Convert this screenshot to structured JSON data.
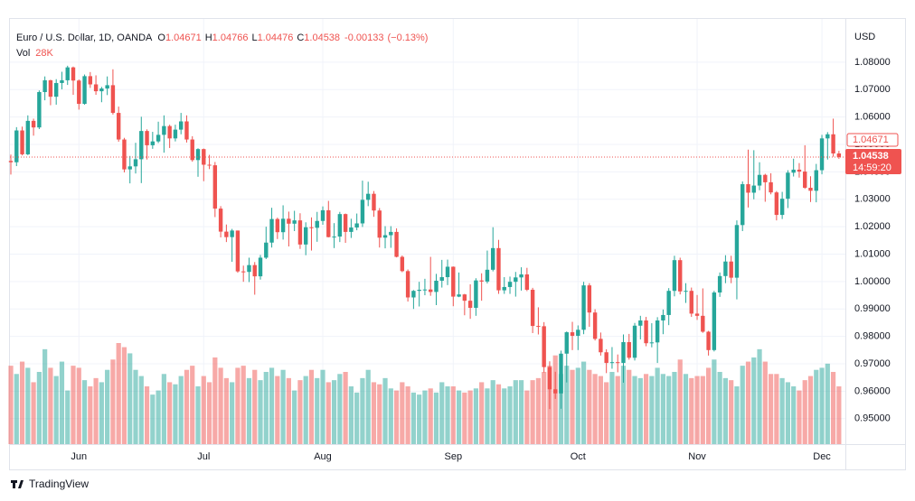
{
  "chart_data": {
    "type": "candlestick",
    "title": "Euro / U.S. Dollar, 1D, OANDA",
    "ohlc_labels": [
      "O",
      "H",
      "L",
      "C"
    ],
    "change": -0.00133,
    "change_label": "(−0.13%)",
    "y_axis_label": "USD",
    "up_color": "#26a69a",
    "down_color": "#ef5350",
    "grid": true,
    "ylim": [
      0.9407,
      1.0928
    ],
    "yticks": [
      {
        "value": 0.95,
        "label": "0.95000"
      },
      {
        "value": 0.96,
        "label": "0.96000"
      },
      {
        "value": 0.97,
        "label": "0.97000"
      },
      {
        "value": 0.98,
        "label": "0.98000"
      },
      {
        "value": 0.99,
        "label": "0.99000"
      },
      {
        "value": 1.0,
        "label": "1.00000"
      },
      {
        "value": 1.01,
        "label": "1.01000"
      },
      {
        "value": 1.02,
        "label": "1.02000"
      },
      {
        "value": 1.03,
        "label": "1.03000"
      },
      {
        "value": 1.04,
        "label": "1.04000"
      },
      {
        "value": 1.05,
        "label": "1.05000"
      },
      {
        "value": 1.06,
        "label": "1.06000"
      },
      {
        "value": 1.07,
        "label": "1.07000"
      },
      {
        "value": 1.08,
        "label": "1.08000"
      }
    ],
    "prev_close_label": "1.04671",
    "close_label": "1.04538",
    "countdown": "14:59:20",
    "footer": "TradingView",
    "categories": [
      null,
      null,
      null,
      null,
      null,
      null,
      null,
      null,
      null,
      null,
      null,
      null,
      "Jun",
      null,
      null,
      null,
      null,
      null,
      null,
      null,
      null,
      null,
      null,
      null,
      null,
      null,
      null,
      null,
      null,
      null,
      null,
      null,
      null,
      null,
      "Jul",
      null,
      null,
      null,
      null,
      null,
      null,
      null,
      null,
      null,
      null,
      null,
      null,
      null,
      null,
      null,
      null,
      null,
      null,
      null,
      null,
      "Aug",
      null,
      null,
      null,
      null,
      null,
      null,
      null,
      null,
      null,
      null,
      null,
      null,
      null,
      null,
      null,
      null,
      null,
      null,
      null,
      null,
      null,
      null,
      "Sep",
      null,
      null,
      null,
      null,
      null,
      null,
      null,
      null,
      null,
      null,
      null,
      null,
      null,
      null,
      null,
      null,
      null,
      null,
      null,
      null,
      null,
      "Oct",
      null,
      null,
      null,
      null,
      null,
      null,
      null,
      null,
      null,
      null,
      null,
      null,
      null,
      null,
      null,
      null,
      null,
      null,
      null,
      null,
      "Nov",
      null,
      null,
      null,
      null,
      null,
      null,
      null,
      null,
      null,
      null,
      null,
      null,
      null,
      null,
      null,
      null,
      null,
      null,
      null,
      null,
      null,
      "Dec",
      null,
      null,
      null
    ],
    "open": [
      1.044,
      1.0435,
      1.0551,
      1.0464,
      1.0586,
      1.0562,
      1.0691,
      1.0734,
      1.0674,
      1.0724,
      1.0734,
      1.0781,
      1.0733,
      1.0648,
      1.0749,
      1.0719,
      1.0694,
      1.0704,
      1.0716,
      1.0615,
      1.0518,
      1.0409,
      1.042,
      1.0446,
      1.0549,
      1.0497,
      1.0511,
      1.0535,
      1.0567,
      1.0522,
      1.0554,
      1.0584,
      1.0518,
      1.0443,
      1.0483,
      1.0426,
      1.0424,
      1.0266,
      1.0182,
      1.0162,
      1.0186,
      1.0037,
      1.0035,
      1.006,
      1.0019,
      1.0087,
      1.0142,
      1.0228,
      1.018,
      1.0229,
      1.0211,
      1.0223,
      1.0135,
      1.0198,
      1.0196,
      1.0221,
      1.026,
      1.0162,
      1.0164,
      1.0246,
      1.0181,
      1.0197,
      1.0212,
      1.0298,
      1.032,
      1.0259,
      1.016,
      1.0169,
      1.0181,
      1.009,
      1.0038,
      0.9942,
      0.9966,
      0.997,
      0.9971,
      0.9962,
      1.0003,
      1.0016,
      1.0054,
      0.9945,
      0.9953,
      0.993,
      0.9904,
      1.0004,
      1.0,
      1.0043,
      1.0122,
      0.9968,
      0.998,
      0.9999,
      1.0015,
      1.0026,
      0.997,
      0.9838,
      0.9837,
      0.9688,
      0.9607,
      0.9592,
      0.9737,
      0.9815,
      0.9802,
      0.9824,
      0.9986,
      0.9887,
      0.9791,
      0.9742,
      0.9703,
      0.9706,
      0.9703,
      0.9779,
      0.9722,
      0.9839,
      0.9858,
      0.9775,
      0.9778,
      0.9858,
      0.9878,
      0.9966,
      1.0078,
      0.9964,
      0.9966,
      0.9883,
      0.9875,
      0.9817,
      0.975,
      0.996,
      1.002,
      1.0073,
      1.0014,
      1.0206,
      1.0355,
      1.0324,
      1.035,
      1.0389,
      1.0362,
      1.0325,
      1.0243,
      1.0302,
      1.0397,
      1.0408,
      1.0401,
      1.0342,
      1.0331,
      1.0406,
      1.0522,
      1.0537,
      1.04671
    ],
    "high": [
      1.0463,
      1.0563,
      1.0565,
      1.0606,
      1.0594,
      1.0697,
      1.0748,
      1.0736,
      1.0738,
      1.0765,
      1.0787,
      1.0784,
      1.0737,
      1.0755,
      1.0764,
      1.0752,
      1.071,
      1.0748,
      1.0774,
      1.0638,
      1.0524,
      1.0458,
      1.0506,
      1.0601,
      1.0555,
      1.0546,
      1.0583,
      1.0606,
      1.0572,
      1.0572,
      1.0615,
      1.0606,
      1.053,
      1.0486,
      1.0485,
      1.0462,
      1.0436,
      1.0275,
      1.0208,
      1.0192,
      1.0186,
      1.0058,
      1.0087,
      1.0071,
      1.0097,
      1.02,
      1.0269,
      1.0233,
      1.0278,
      1.0255,
      1.0258,
      1.0249,
      1.0216,
      1.0234,
      1.0254,
      1.0274,
      1.0294,
      1.0213,
      1.0254,
      1.0248,
      1.0229,
      1.0248,
      1.0368,
      1.0364,
      1.033,
      1.0268,
      1.0202,
      1.0202,
      1.0194,
      1.0095,
      1.0044,
      0.9969,
      0.9999,
      1.001,
      1.009,
      1.0028,
      1.0079,
      1.008,
      1.0055,
      1.0033,
      0.9955,
      0.999,
      1.0012,
      1.003,
      1.0113,
      1.0198,
      1.0152,
      1.0016,
      1.0018,
      1.0035,
      1.0052,
      1.005,
      0.9977,
      0.9906,
      0.9852,
      0.9709,
      0.9671,
      0.9748,
      0.9818,
      0.9853,
      0.984,
      0.9999,
      0.9994,
      0.9899,
      0.9814,
      0.9753,
      0.9761,
      0.9734,
      0.9807,
      0.9809,
      0.9849,
      0.9875,
      0.9871,
      0.9848,
      0.987,
      0.9898,
      0.9976,
      1.0094,
      1.0087,
      0.9994,
      0.9978,
      0.9951,
      0.9975,
      0.982,
      0.9966,
      1.0033,
      1.0096,
      1.0094,
      1.0223,
      1.0365,
      1.0481,
      1.0479,
      1.0435,
      1.0393,
      1.0395,
      1.033,
      1.0327,
      1.0406,
      1.0448,
      1.0432,
      1.0497,
      1.0384,
      1.0429,
      1.0535,
      1.0545,
      1.0594,
      1.04766
    ],
    "low": [
      1.039,
      1.0421,
      1.046,
      1.0461,
      1.0532,
      1.0556,
      1.0661,
      1.0643,
      1.0645,
      1.0701,
      1.0717,
      1.0681,
      1.0627,
      1.0645,
      1.0706,
      1.0681,
      1.0654,
      1.068,
      1.0609,
      1.051,
      1.0398,
      1.0358,
      1.0394,
      1.0359,
      1.0445,
      1.0484,
      1.0505,
      1.047,
      1.0487,
      1.0511,
      1.0537,
      1.0507,
      1.0437,
      1.0382,
      1.0366,
      1.041,
      1.0235,
      1.0161,
      1.0144,
      1.0072,
      1.0032,
      0.9999,
      0.9998,
      0.9952,
      1.0007,
      1.0082,
      1.0124,
      1.0155,
      1.0153,
      1.0128,
      1.0184,
      1.0119,
      1.0096,
      1.0113,
      1.0145,
      1.0207,
      1.0161,
      1.0122,
      1.0144,
      1.0141,
      1.0159,
      1.0187,
      1.0199,
      1.0275,
      1.0236,
      1.0124,
      1.0121,
      1.0123,
      1.0088,
      1.0034,
      0.9927,
      0.99,
      0.9909,
      0.995,
      0.9948,
      0.9914,
      0.9978,
      0.9987,
      0.991,
      0.9943,
      0.9877,
      0.9864,
      0.9875,
      0.993,
      0.9993,
      1.0037,
      0.9955,
      0.9955,
      0.9955,
      0.9945,
      0.9967,
      0.9965,
      0.9812,
      0.9807,
      0.9668,
      0.9535,
      0.9572,
      0.9536,
      0.9632,
      0.975,
      0.975,
      0.9808,
      0.9835,
      0.9785,
      0.973,
      0.9666,
      0.9682,
      0.9669,
      0.9631,
      0.9715,
      0.9712,
      0.9789,
      0.9764,
      0.976,
      0.9703,
      0.9808,
      0.9841,
      0.9946,
      0.9953,
      0.9922,
      0.9871,
      0.986,
      0.9813,
      0.973,
      0.9745,
      0.9944,
      0.9994,
      0.9994,
      0.9935,
      1.0184,
      1.027,
      1.03,
      1.0333,
      1.0291,
      1.0318,
      1.0223,
      1.0228,
      1.0268,
      1.0383,
      1.0379,
      1.0338,
      1.029,
      1.0289,
      1.0391,
      1.0445,
      1.0455,
      1.04476
    ],
    "close": [
      1.0435,
      1.0551,
      1.0464,
      1.0586,
      1.0562,
      1.0691,
      1.0734,
      1.0674,
      1.0724,
      1.0734,
      1.0781,
      1.0733,
      1.0648,
      1.0749,
      1.0719,
      1.0694,
      1.0704,
      1.0716,
      1.0615,
      1.0518,
      1.0409,
      1.042,
      1.0446,
      1.0549,
      1.0497,
      1.0511,
      1.0535,
      1.0567,
      1.0522,
      1.0554,
      1.0584,
      1.0518,
      1.0443,
      1.0483,
      1.0426,
      1.0424,
      1.0266,
      1.0182,
      1.0162,
      1.0186,
      1.0037,
      1.0035,
      1.006,
      1.0019,
      1.0087,
      1.0142,
      1.0228,
      1.018,
      1.0229,
      1.0211,
      1.0223,
      1.0135,
      1.0198,
      1.0196,
      1.0221,
      1.026,
      1.0162,
      1.0164,
      1.0246,
      1.0181,
      1.0197,
      1.0212,
      1.0298,
      1.032,
      1.0259,
      1.016,
      1.0169,
      1.0181,
      1.009,
      1.0038,
      0.9942,
      0.9966,
      0.997,
      0.9971,
      0.9962,
      1.0003,
      1.0016,
      1.0054,
      0.9945,
      0.9953,
      0.993,
      0.9904,
      1.0004,
      1.0,
      1.0043,
      1.0122,
      0.9968,
      0.998,
      0.9999,
      1.0015,
      1.0026,
      0.997,
      0.9838,
      0.9837,
      0.9688,
      0.9607,
      0.9592,
      0.9737,
      0.9815,
      0.9802,
      0.9824,
      0.9986,
      0.9887,
      0.9791,
      0.9742,
      0.9703,
      0.9706,
      0.9703,
      0.9779,
      0.9722,
      0.9839,
      0.9858,
      0.9775,
      0.9778,
      0.9858,
      0.9878,
      0.9966,
      1.0078,
      0.9964,
      0.9966,
      0.9883,
      0.9875,
      0.9817,
      0.975,
      0.996,
      1.002,
      1.0073,
      1.0014,
      1.0206,
      1.0355,
      1.0324,
      1.035,
      1.0389,
      1.0362,
      1.0325,
      1.0243,
      1.0302,
      1.0397,
      1.0408,
      1.0401,
      1.0342,
      1.0331,
      1.0406,
      1.0522,
      1.0537,
      1.04671,
      1.04538
    ],
    "volume": {
      "name": "Vol",
      "last_label": "28K",
      "values": [
        38,
        34,
        40,
        37,
        30,
        35,
        46,
        37,
        33,
        40,
        26,
        38,
        37,
        31,
        28,
        32,
        30,
        36,
        41,
        49,
        47,
        44,
        36,
        33,
        28,
        24,
        26,
        34,
        30,
        29,
        33,
        36,
        38,
        28,
        33,
        30,
        42,
        37,
        32,
        30,
        37,
        38,
        32,
        36,
        31,
        35,
        37,
        33,
        36,
        32,
        26,
        31,
        33,
        36,
        32,
        36,
        30,
        31,
        34,
        35,
        28,
        25,
        32,
        36,
        30,
        29,
        32,
        27,
        26,
        30,
        28,
        25,
        24,
        26,
        27,
        25,
        30,
        28,
        28,
        26,
        25,
        26,
        27,
        30,
        27,
        31,
        29,
        27,
        28,
        31,
        31,
        26,
        31,
        32,
        35,
        38,
        43,
        34,
        38,
        36,
        37,
        40,
        36,
        34,
        33,
        30,
        35,
        33,
        38,
        36,
        33,
        32,
        34,
        33,
        37,
        34,
        33,
        35,
        41,
        34,
        32,
        33,
        33,
        37,
        41,
        35,
        32,
        31,
        28,
        38,
        40,
        42,
        46,
        40,
        34,
        34,
        32,
        30,
        28,
        26,
        31,
        33,
        36,
        37,
        39,
        35,
        28
      ]
    }
  }
}
